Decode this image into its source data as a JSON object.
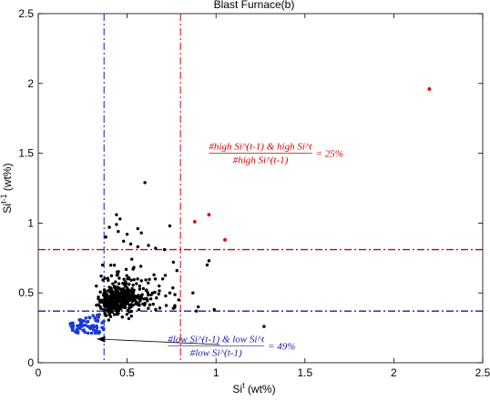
{
  "chart_data": {
    "type": "scatter",
    "title": "Blast Furnace(b)",
    "xlabel": "Si",
    "xlabel_sup": "t",
    "xlabel_unit": " (wt%)",
    "ylabel": "Si",
    "ylabel_sup": "t-1",
    "ylabel_unit": " (wt%)",
    "xlim": [
      0,
      2.5
    ],
    "ylim": [
      0,
      2.5
    ],
    "xticks": [
      0,
      0.5,
      1,
      1.5,
      2,
      2.5
    ],
    "xtick_labels": [
      "0",
      "0.5",
      "1",
      "1.5",
      "2",
      "2.5"
    ],
    "yticks": [
      0,
      0.5,
      1,
      1.5,
      2,
      2.5
    ],
    "ytick_labels": [
      "0",
      "0.5",
      "1",
      "1.5",
      "2",
      "2.5"
    ],
    "grid": false,
    "thresholds": {
      "low_x": 0.37,
      "high_x": 0.8,
      "high_y": 0.81,
      "low_y": 0.37,
      "low_color": "#1a1aa6",
      "high_color": "#d40000"
    },
    "series_colors": {
      "normal": "#000000",
      "high": "#e00000",
      "low": "#1a3ad6"
    },
    "high_points": [
      [
        0.88,
        1.01
      ],
      [
        0.96,
        1.06
      ],
      [
        1.05,
        0.88
      ],
      [
        2.2,
        1.96
      ]
    ],
    "black_points": [
      [
        0.6,
        1.29
      ],
      [
        0.44,
        1.06
      ],
      [
        0.46,
        1.03
      ],
      [
        0.44,
        0.99
      ],
      [
        0.4,
        0.97
      ],
      [
        0.56,
        0.96
      ],
      [
        0.45,
        0.94
      ],
      [
        0.58,
        0.93
      ],
      [
        0.5,
        0.92
      ],
      [
        0.38,
        0.9
      ],
      [
        0.74,
        0.98
      ],
      [
        0.48,
        0.87
      ],
      [
        0.52,
        0.85
      ],
      [
        0.62,
        0.84
      ],
      [
        0.56,
        0.83
      ],
      [
        0.66,
        0.82
      ],
      [
        0.71,
        0.81
      ],
      [
        0.96,
        0.73
      ],
      [
        0.95,
        0.7
      ],
      [
        1.27,
        0.26
      ],
      [
        0.99,
        0.38
      ],
      [
        0.89,
        0.37
      ],
      [
        0.87,
        0.5
      ],
      [
        0.9,
        0.4
      ],
      [
        0.76,
        0.72
      ],
      [
        0.78,
        0.66
      ],
      [
        0.7,
        0.6
      ],
      [
        0.68,
        0.55
      ],
      [
        0.74,
        0.5
      ],
      [
        0.79,
        0.45
      ],
      [
        0.72,
        0.41
      ],
      [
        0.76,
        0.39
      ]
    ],
    "annotations": [
      {
        "numerator": "#high Si^(t-1) & high Si^t",
        "denominator": "#high Si^(t-1)",
        "value": "= 25%",
        "color": "#d40000",
        "x": 1.25,
        "y": 1.5
      },
      {
        "numerator": "#low Si^(t-1) & low Si^t",
        "denominator": "#low Si^(t-1)",
        "value": "= 49%",
        "color": "#1a1aa6",
        "x": 1.0,
        "y": 0.12
      }
    ],
    "arrow": {
      "from": [
        1.02,
        0.13
      ],
      "to": [
        0.33,
        0.17
      ]
    }
  }
}
